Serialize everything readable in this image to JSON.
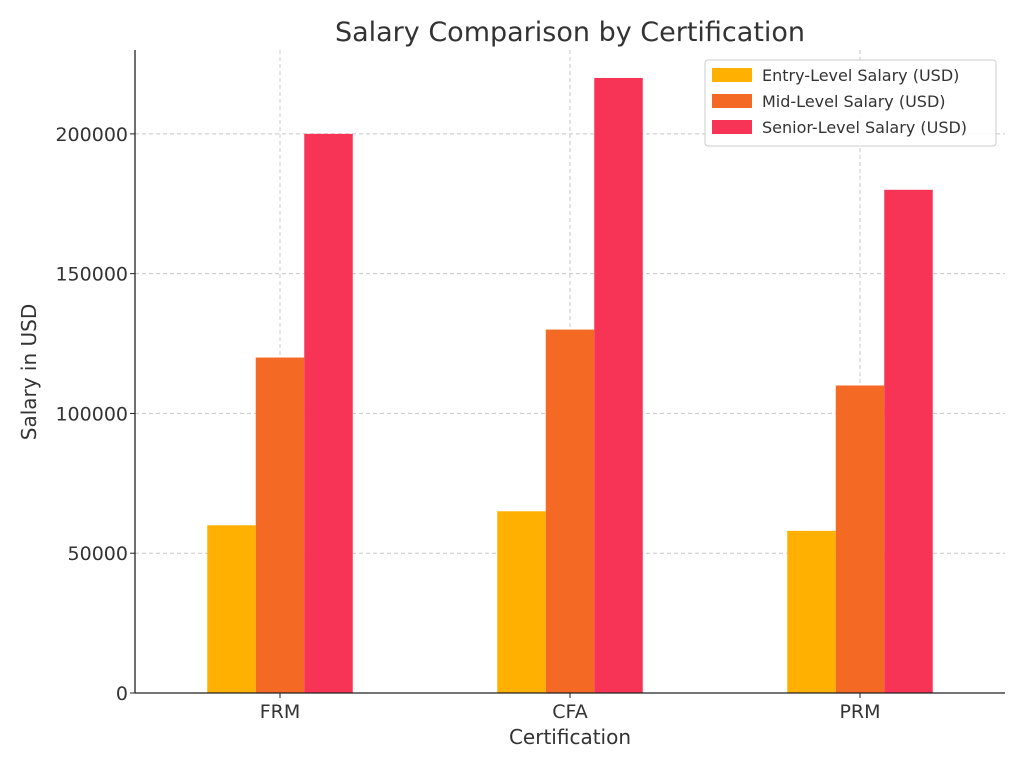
{
  "chart_data": {
    "type": "bar",
    "title": "Salary Comparison by Certification",
    "xlabel": "Certification",
    "ylabel": "Salary in USD",
    "categories": [
      "FRM",
      "CFA",
      "PRM"
    ],
    "series": [
      {
        "name": "Entry-Level Salary (USD)",
        "color": "#ffb000",
        "values": [
          60000,
          65000,
          58000
        ]
      },
      {
        "name": "Mid-Level Salary (USD)",
        "color": "#f46a25",
        "values": [
          120000,
          130000,
          110000
        ]
      },
      {
        "name": "Senior-Level Salary (USD)",
        "color": "#f73356",
        "values": [
          200000,
          220000,
          180000
        ]
      }
    ],
    "ylim": [
      0,
      230000
    ],
    "yticks": [
      0,
      50000,
      100000,
      150000,
      200000
    ],
    "grid": true,
    "legend_position": "top-right"
  }
}
